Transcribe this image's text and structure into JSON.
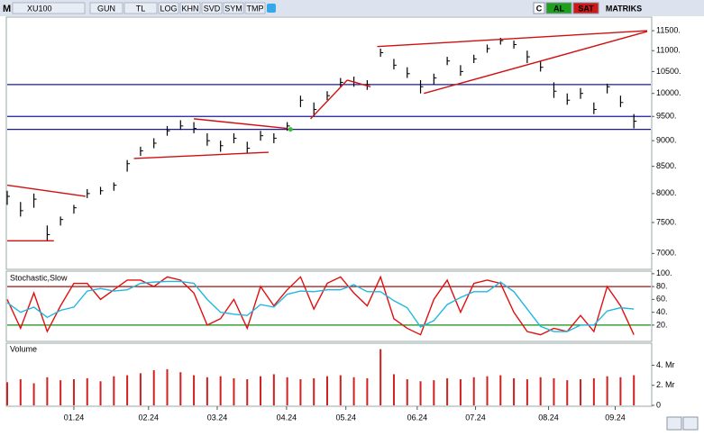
{
  "toolbar": {
    "mode": "M",
    "buttons": [
      "GUN",
      "TL",
      "LOG",
      "KHN",
      "SVD",
      "SYM",
      "TMP"
    ],
    "right": [
      "C",
      "AL",
      "SAT"
    ],
    "brand": "MATRIKS"
  },
  "chart_data": [
    {
      "type": "ohlc",
      "log": true,
      "xlim": [
        0,
        192
      ],
      "ylim": [
        6770,
        11830
      ],
      "yticks": [
        {
          "value": 7000,
          "label": "7000."
        },
        {
          "value": 7500,
          "label": "7500."
        },
        {
          "value": 8000,
          "label": "8000."
        },
        {
          "value": 8500,
          "label": "8500."
        },
        {
          "value": 9000,
          "label": "9000."
        },
        {
          "value": 9500,
          "label": "9500."
        },
        {
          "value": 10000,
          "label": "10000."
        },
        {
          "value": 10500,
          "label": "10500."
        },
        {
          "value": 11000,
          "label": "11000."
        },
        {
          "value": 11500,
          "label": "11500."
        }
      ],
      "x": [
        0,
        4,
        8,
        12,
        16,
        20,
        24,
        28,
        32,
        36,
        40,
        44,
        48,
        52,
        56,
        60,
        64,
        68,
        72,
        76,
        80,
        84,
        88,
        92,
        96,
        100,
        104,
        108,
        112,
        116,
        120,
        124,
        128,
        132,
        136,
        140,
        144,
        148,
        152,
        156,
        160,
        164,
        168,
        172,
        176,
        180,
        184,
        188
      ],
      "series": [
        {
          "name": "XU100",
          "color": "#000000",
          "high": [
            8050,
            7850,
            8000,
            7450,
            7600,
            7800,
            8080,
            8120,
            8200,
            8620,
            8880,
            9050,
            9300,
            9420,
            9380,
            9150,
            9000,
            9150,
            8980,
            9200,
            9150,
            9380,
            9950,
            9800,
            10050,
            10350,
            10380,
            10300,
            11050,
            10800,
            10600,
            10300,
            10450,
            10850,
            10650,
            10900,
            11150,
            11320,
            11250,
            11000,
            10750,
            10250,
            10000,
            10120,
            9800,
            10220,
            9950,
            9550
          ],
          "low": [
            7800,
            7600,
            7750,
            7200,
            7450,
            7650,
            7920,
            7980,
            8050,
            8400,
            8700,
            8850,
            9100,
            9220,
            9150,
            8900,
            8780,
            8950,
            8750,
            9000,
            8950,
            9200,
            9700,
            9500,
            9850,
            10150,
            10150,
            10080,
            10850,
            10550,
            10350,
            10000,
            10200,
            10650,
            10400,
            10700,
            10950,
            11150,
            11050,
            10700,
            10500,
            9900,
            9750,
            9880,
            9550,
            10000,
            9700,
            9250
          ],
          "close": [
            7950,
            7700,
            7900,
            7300,
            7550,
            7750,
            8000,
            8050,
            8150,
            8550,
            8800,
            8950,
            9200,
            9300,
            9250,
            9000,
            8900,
            9050,
            8850,
            9100,
            9050,
            9300,
            9850,
            9650,
            9950,
            10250,
            10250,
            10200,
            10950,
            10650,
            10450,
            10150,
            10350,
            10750,
            10500,
            10800,
            11050,
            11250,
            11150,
            10850,
            10600,
            10050,
            9850,
            10000,
            9650,
            10150,
            9800,
            9400
          ]
        }
      ],
      "hlines": [
        {
          "value": 10200,
          "color": "#1a1aa0"
        },
        {
          "value": 9500,
          "color": "#1a1aa0"
        },
        {
          "value": 9230,
          "color": "#1a1aa0"
        }
      ],
      "trendlines": [
        {
          "x": [
            0,
            23.5
          ],
          "y": [
            8150,
            7950
          ],
          "color": "#d01010"
        },
        {
          "x": [
            0,
            14
          ],
          "y": [
            7200,
            7200
          ],
          "color": "#d01010"
        },
        {
          "x": [
            38,
            78.4
          ],
          "y": [
            8650,
            8770
          ],
          "color": "#d01010"
        },
        {
          "x": [
            56,
            84
          ],
          "y": [
            9450,
            9250
          ],
          "color": "#d01010"
        },
        {
          "x": [
            91,
            102
          ],
          "y": [
            9450,
            10300
          ],
          "color": "#d01010"
        },
        {
          "x": [
            102,
            109
          ],
          "y": [
            10300,
            10150
          ],
          "color": "#d01010"
        },
        {
          "x": [
            111,
            192
          ],
          "y": [
            11100,
            11500
          ],
          "color": "#d01010"
        },
        {
          "x": [
            125,
            192
          ],
          "y": [
            10000,
            11480
          ],
          "color": "#d01010"
        }
      ],
      "markers": [
        {
          "x": 85,
          "y": 9230,
          "color": "#30c030"
        }
      ]
    },
    {
      "type": "line",
      "title": "Stochastic,Slow",
      "xlim": [
        0,
        192
      ],
      "ylim": [
        -4,
        102.6
      ],
      "yticks": [
        {
          "value": 20,
          "label": "20."
        },
        {
          "value": 40,
          "label": "40."
        },
        {
          "value": 60,
          "label": "60."
        },
        {
          "value": 80,
          "label": "80."
        },
        {
          "value": 100,
          "label": "100."
        }
      ],
      "x": [
        0,
        4,
        8,
        12,
        16,
        20,
        24,
        28,
        32,
        36,
        40,
        44,
        48,
        52,
        56,
        60,
        64,
        68,
        72,
        76,
        80,
        84,
        88,
        92,
        96,
        100,
        104,
        108,
        112,
        116,
        120,
        124,
        128,
        132,
        136,
        140,
        144,
        148,
        152,
        156,
        160,
        164,
        168,
        172,
        176,
        180,
        184,
        188
      ],
      "series": [
        {
          "color": "#e01010",
          "values": [
            60,
            15,
            70,
            10,
            50,
            85,
            85,
            60,
            75,
            90,
            90,
            80,
            95,
            90,
            70,
            20,
            30,
            60,
            15,
            80,
            50,
            75,
            95,
            45,
            85,
            95,
            70,
            50,
            95,
            30,
            15,
            5,
            60,
            90,
            40,
            85,
            90,
            85,
            40,
            10,
            5,
            15,
            10,
            35,
            10,
            80,
            50,
            5
          ]
        },
        {
          "color": "#20b8e0",
          "values": [
            55,
            40,
            48,
            32,
            43,
            48,
            73,
            77,
            73,
            75,
            85,
            87,
            88,
            88,
            85,
            60,
            40,
            37,
            35,
            52,
            48,
            68,
            73,
            72,
            75,
            75,
            83,
            72,
            72,
            58,
            47,
            17,
            27,
            52,
            63,
            72,
            72,
            87,
            72,
            45,
            18,
            10,
            10,
            20,
            20,
            42,
            47,
            45
          ]
        }
      ],
      "hlines": [
        {
          "value": 80,
          "color": "#a01010"
        },
        {
          "value": 20,
          "color": "#109010"
        }
      ]
    },
    {
      "type": "bar",
      "title": "Volume",
      "xlim": [
        0,
        192
      ],
      "ylim": [
        0,
        6.1
      ],
      "yticks": [
        0,
        {
          "value": 2,
          "label": "2. Mr"
        },
        {
          "value": 4,
          "label": "4. Mr"
        }
      ],
      "xticks": [
        {
          "value": 20,
          "label": "01.24"
        },
        {
          "value": 42.4,
          "label": "02.24"
        },
        {
          "value": 63,
          "label": "03.24"
        },
        {
          "value": 83.8,
          "label": "04.24"
        },
        {
          "value": 101.6,
          "label": "05.24"
        },
        {
          "value": 123,
          "label": "06.24"
        },
        {
          "value": 140.5,
          "label": "07.24"
        },
        {
          "value": 162.4,
          "label": "08.24"
        },
        {
          "value": 182.4,
          "label": "09.24"
        }
      ],
      "x": [
        0,
        4,
        8,
        12,
        16,
        20,
        24,
        28,
        32,
        36,
        40,
        44,
        48,
        52,
        56,
        60,
        64,
        68,
        72,
        76,
        80,
        84,
        88,
        92,
        96,
        100,
        104,
        108,
        112,
        116,
        120,
        124,
        128,
        132,
        136,
        140,
        144,
        148,
        152,
        156,
        160,
        164,
        168,
        172,
        176,
        180,
        184,
        188
      ],
      "color": "#d02020",
      "values": [
        2.3,
        2.6,
        2.2,
        2.8,
        2.5,
        2.6,
        2.7,
        2.4,
        2.9,
        3.0,
        3.2,
        3.5,
        3.6,
        3.3,
        3.0,
        2.8,
        2.9,
        2.7,
        2.6,
        2.9,
        3.1,
        2.8,
        2.6,
        2.7,
        2.9,
        3.0,
        2.8,
        2.7,
        5.6,
        3.1,
        2.6,
        2.4,
        2.5,
        2.7,
        2.6,
        2.8,
        2.9,
        3.0,
        2.7,
        2.6,
        2.8,
        2.7,
        2.5,
        2.6,
        2.7,
        2.9,
        2.8,
        3.0
      ]
    }
  ]
}
